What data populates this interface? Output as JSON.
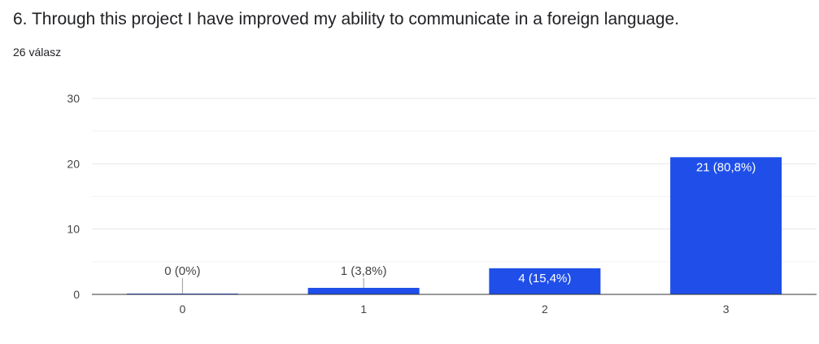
{
  "question": {
    "title": "6. Through this project I have improved my ability to communicate in a foreign language.",
    "responses": "26 válasz"
  },
  "colors": {
    "bar": "#1f4fe8",
    "grid": "#e6e6e6",
    "axis": "#333333",
    "text": "#444444"
  },
  "chart_data": {
    "type": "bar",
    "categories": [
      "0",
      "1",
      "2",
      "3"
    ],
    "values": [
      0,
      1,
      4,
      21
    ],
    "data_labels": [
      "0 (0%)",
      "1 (3,8%)",
      "4 (15,4%)",
      "21 (80,8%)"
    ],
    "ylim": [
      0,
      30
    ],
    "yticks": [
      0,
      10,
      20,
      30
    ],
    "grid": true,
    "title": "",
    "xlabel": "",
    "ylabel": ""
  }
}
